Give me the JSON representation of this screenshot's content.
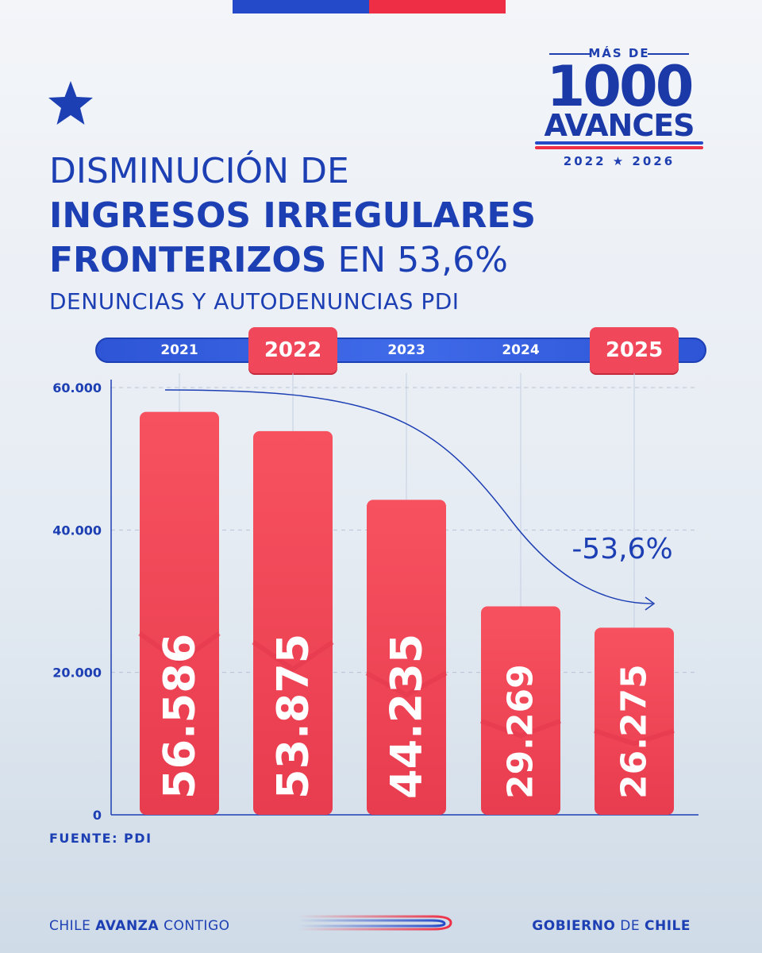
{
  "title": {
    "line1": "DISMINUCIÓN DE",
    "line2": "INGRESOS IRREGULARES",
    "line3_bold": "FRONTERIZOS",
    "line3_rest": " EN 53,6%",
    "subtitle": "DENUNCIAS Y AUTODENUNCIAS PDI"
  },
  "badge": {
    "top": "MÁS DE",
    "number": "1000",
    "word": "AVANCES",
    "years": "2022 ★ 2026"
  },
  "timeline": {
    "years": [
      "2021",
      "2022",
      "2023",
      "2024",
      "2025"
    ],
    "highlighted": [
      "2022",
      "2025"
    ]
  },
  "chart_data": {
    "type": "bar",
    "categories": [
      "2021",
      "2022",
      "2023",
      "2024",
      "2025"
    ],
    "values": [
      56586,
      53875,
      44235,
      29269,
      26275
    ],
    "value_labels": [
      "56.586",
      "53.875",
      "44.235",
      "29.269",
      "26.275"
    ],
    "ylim": [
      0,
      60000
    ],
    "yticks": [
      0,
      20000,
      40000,
      60000
    ],
    "ytick_labels": [
      "0",
      "20.000",
      "40.000",
      "60.000"
    ],
    "annotation": "-53,6%",
    "bar_color": "#f24a5c",
    "grid": "dashed horizontal and vertical"
  },
  "source": "FUENTE: PDI",
  "footer": {
    "left_pre": "CHILE ",
    "left_bold": "AVANZA",
    "left_post": " CONTIGO",
    "right_bold1": "GOBIERNO",
    "right_mid": " DE ",
    "right_bold2": "CHILE"
  },
  "colors": {
    "primary_blue": "#1d3fb4",
    "accent_red": "#ee2e45"
  }
}
